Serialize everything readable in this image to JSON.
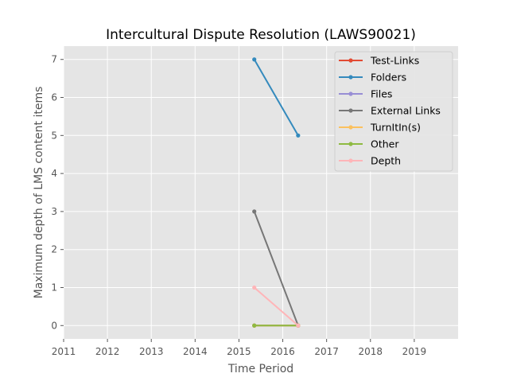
{
  "chart_data": {
    "type": "line",
    "title": "Intercultural Dispute Resolution (LAWS90021)",
    "xlabel": "Time Period",
    "ylabel": "Maximum depth of LMS content items",
    "xlim": [
      2011,
      2020
    ],
    "ylim": [
      -0.35,
      7.35
    ],
    "xticks": [
      2011,
      2012,
      2013,
      2014,
      2015,
      2016,
      2017,
      2018,
      2019
    ],
    "yticks": [
      0,
      1,
      2,
      3,
      4,
      5,
      6,
      7
    ],
    "grid": true,
    "legend_position": "top-right",
    "series": [
      {
        "name": "Test-Links",
        "color": "#e24a33",
        "x": [
          2015.35,
          2016.35
        ],
        "y": [
          0,
          0
        ]
      },
      {
        "name": "Folders",
        "color": "#348abd",
        "x": [
          2015.35,
          2016.35
        ],
        "y": [
          7,
          5
        ]
      },
      {
        "name": "Files",
        "color": "#988ed5",
        "x": [
          2015.35,
          2016.35
        ],
        "y": [
          0,
          0
        ]
      },
      {
        "name": "External Links",
        "color": "#777777",
        "x": [
          2015.35,
          2016.35
        ],
        "y": [
          3,
          0
        ]
      },
      {
        "name": "TurnItIn(s)",
        "color": "#fbc15e",
        "x": [
          2015.35,
          2016.35
        ],
        "y": [
          0,
          0
        ]
      },
      {
        "name": "Other",
        "color": "#8eba42",
        "x": [
          2015.35,
          2016.35
        ],
        "y": [
          0,
          0
        ]
      },
      {
        "name": "Depth",
        "color": "#ffb5b8",
        "x": [
          2015.35,
          2016.35
        ],
        "y": [
          1,
          0
        ]
      }
    ]
  }
}
